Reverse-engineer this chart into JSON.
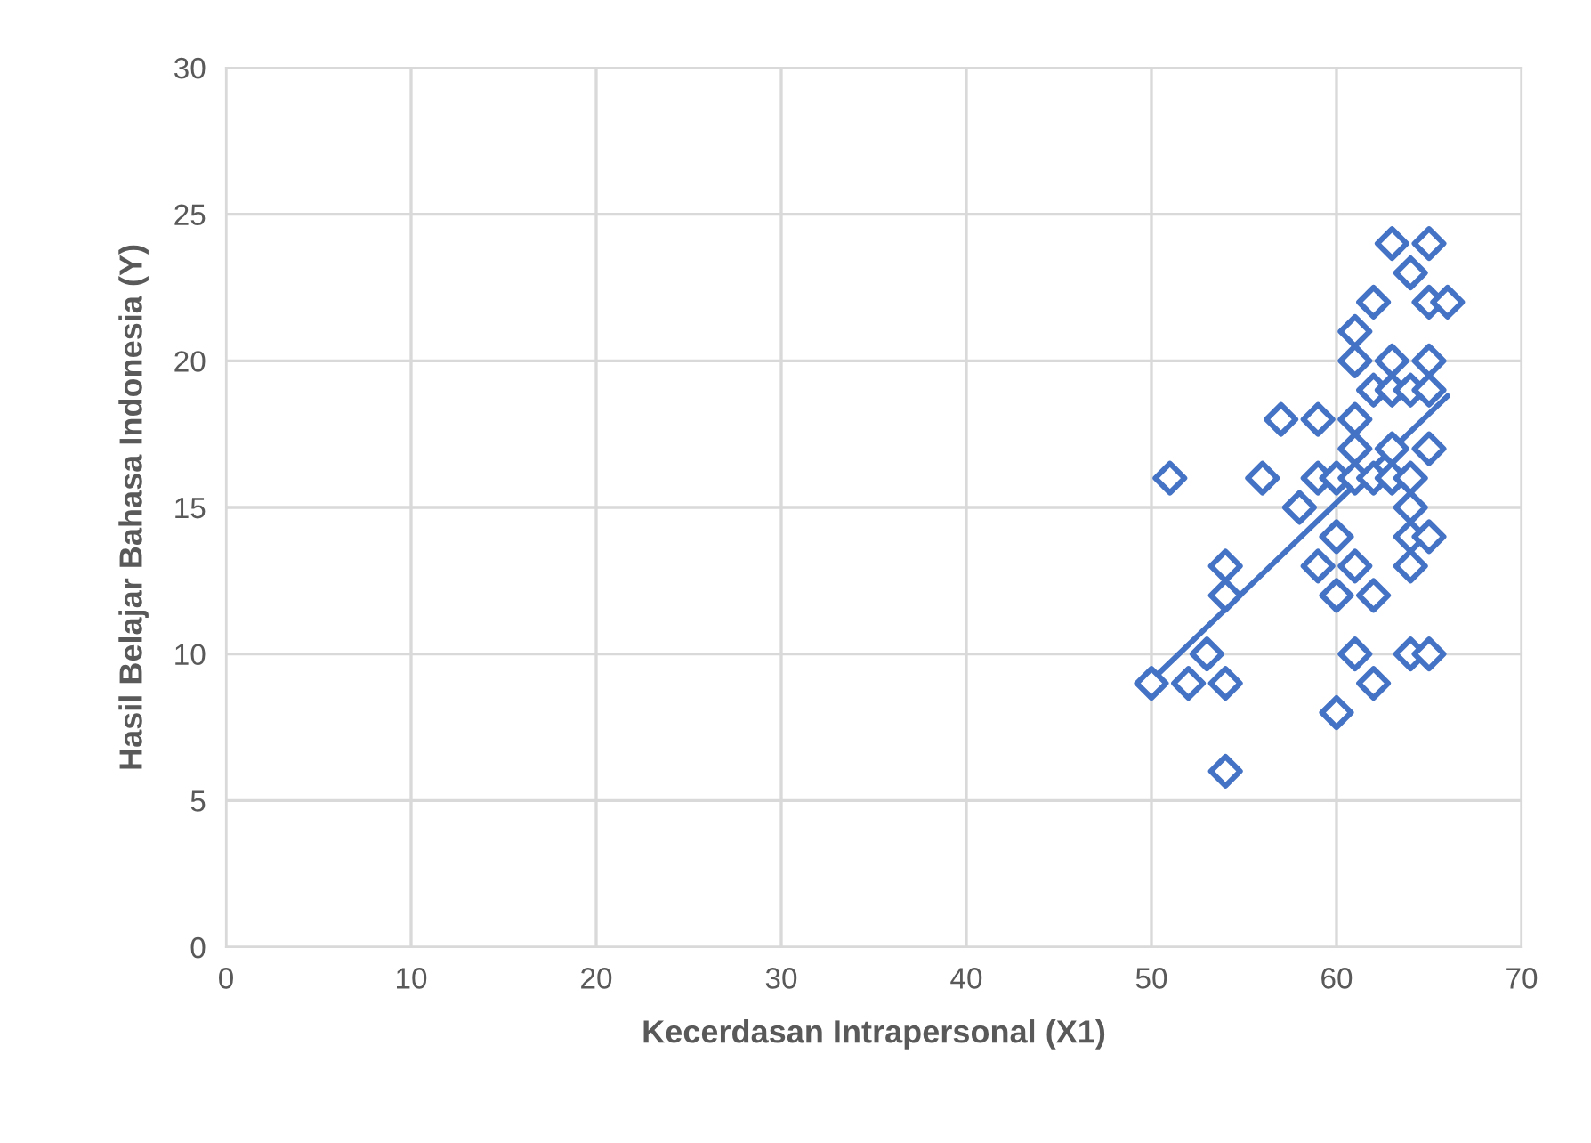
{
  "chart_data": {
    "type": "scatter",
    "xlabel": "Kecerdasan Intrapersonal (X1)",
    "ylabel": "Hasil Belajar Bahasa Indonesia (Y)",
    "xlim": [
      0,
      70
    ],
    "xticks": [
      0,
      10,
      20,
      30,
      40,
      50,
      60,
      70
    ],
    "ylim": [
      0,
      30
    ],
    "yticks": [
      0,
      5,
      10,
      15,
      20,
      25,
      30
    ],
    "grid": true,
    "legend": false,
    "series": [
      {
        "marker": "diamond",
        "color": "#4472c4",
        "x": [
          50,
          51,
          52,
          53,
          54,
          54,
          54,
          54,
          56,
          57,
          58,
          59,
          59,
          59,
          60,
          60,
          60,
          60,
          61,
          61,
          61,
          61,
          61,
          61,
          61,
          62,
          62,
          62,
          62,
          62,
          63,
          63,
          63,
          63,
          63,
          64,
          64,
          64,
          64,
          64,
          64,
          64,
          65,
          65,
          65,
          65,
          65,
          65,
          65,
          66
        ],
        "values": [
          9,
          16,
          9,
          10,
          13,
          12,
          9,
          6,
          16,
          18,
          15,
          18,
          16,
          13,
          16,
          14,
          12,
          8,
          21,
          20,
          18,
          17,
          16,
          13,
          10,
          22,
          19,
          16,
          12,
          9,
          24,
          20,
          19,
          17,
          16,
          23,
          19,
          16,
          15,
          14,
          13,
          10,
          24,
          22,
          20,
          19,
          17,
          14,
          10,
          22
        ]
      },
      {
        "type": "line",
        "marker": "none",
        "color": "#4472c4",
        "x": [
          50,
          66
        ],
        "values": [
          9.1,
          18.8
        ]
      }
    ]
  }
}
